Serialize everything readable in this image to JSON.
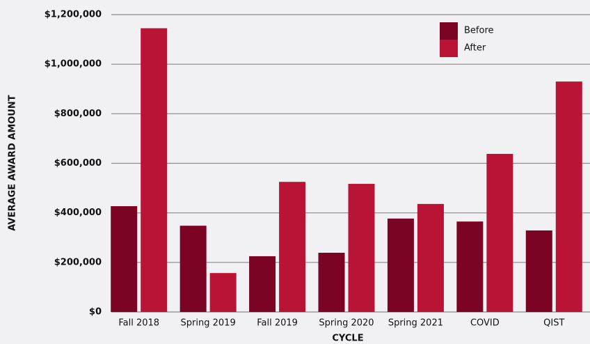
{
  "chart_data": {
    "type": "bar",
    "x_label": "CYCLE",
    "y_label": "AVERAGE AWARD AMOUNT",
    "categories": [
      "Fall 2018",
      "Spring 2019",
      "Fall 2019",
      "Spring 2020",
      "Spring 2021",
      "COVID",
      "QIST"
    ],
    "series": [
      {
        "name": "Before",
        "color": "#7b0323",
        "values": [
          427000,
          348000,
          225000,
          239000,
          377000,
          365000,
          329000
        ]
      },
      {
        "name": "After",
        "color": "#b91436",
        "values": [
          1145000,
          157000,
          525000,
          517000,
          436000,
          638000,
          930000
        ]
      }
    ],
    "ylim": [
      0,
      1200000
    ],
    "yticks": [
      {
        "value": 0,
        "label": "$0"
      },
      {
        "value": 200000,
        "label": "$200,000"
      },
      {
        "value": 400000,
        "label": "$400,000"
      },
      {
        "value": 600000,
        "label": "$600,000"
      },
      {
        "value": 800000,
        "label": "$800,000"
      },
      {
        "value": 1000000,
        "label": "$1,000,000"
      },
      {
        "value": 1200000,
        "label": "$1,200,000"
      }
    ],
    "grid": true,
    "legend": "upper right"
  }
}
